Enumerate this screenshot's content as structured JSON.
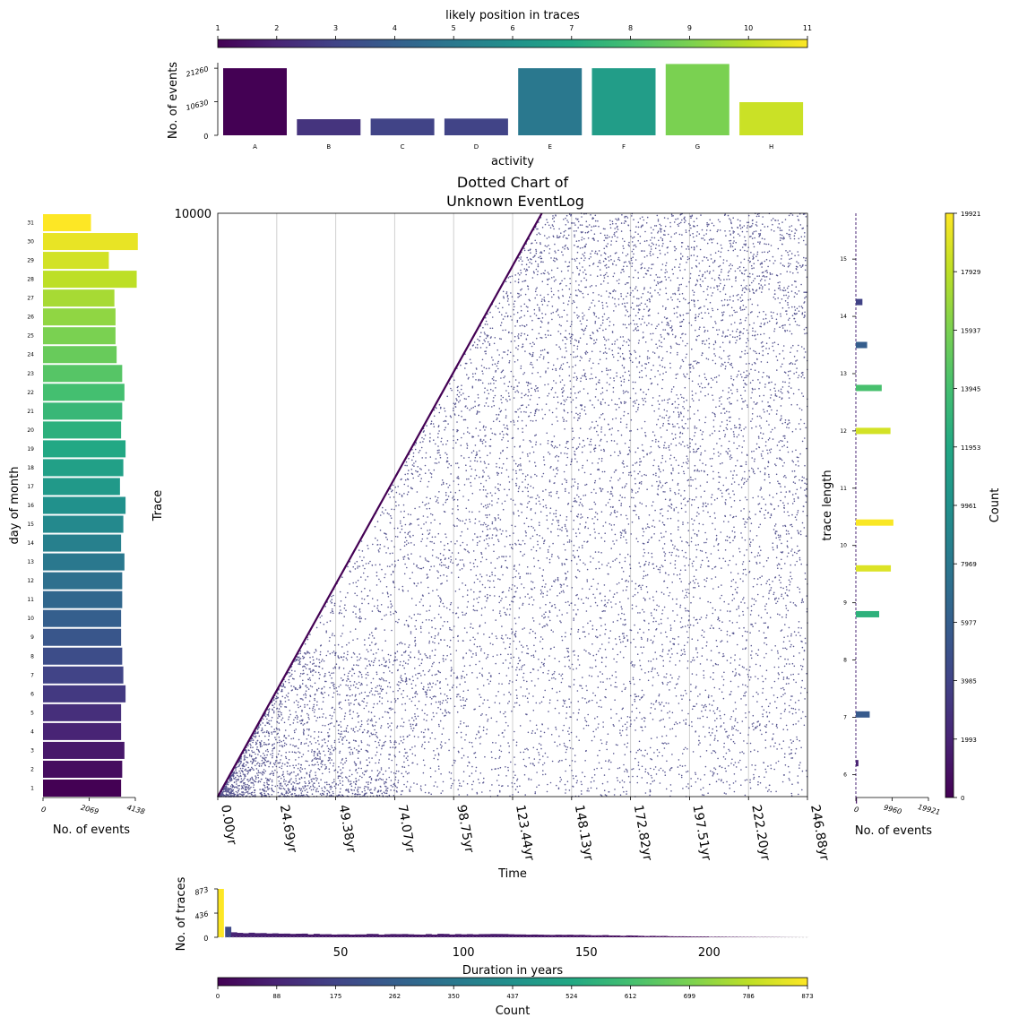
{
  "palette": [
    "#440154",
    "#482475",
    "#414487",
    "#355f8d",
    "#2a788e",
    "#21918c",
    "#22a884",
    "#44bf70",
    "#7ad151",
    "#bddf26",
    "#fde725"
  ],
  "figure": {
    "main_title": "Dotted Chart of",
    "main_subtitle": "Unknown EventLog"
  },
  "chart_data": [
    {
      "id": "activity_counts",
      "type": "bar",
      "xlabel": "activity",
      "ylabel": "No. of events",
      "categories": [
        "A",
        "B",
        "C",
        "D",
        "E",
        "F",
        "G",
        "H"
      ],
      "values": [
        21260,
        5100,
        5300,
        5300,
        21260,
        21260,
        22600,
        10500
      ],
      "color_index": [
        0.0,
        0.15,
        0.2,
        0.2,
        0.4,
        0.55,
        0.8,
        0.92
      ],
      "yticks": [
        "0",
        "10630",
        "21260"
      ],
      "ylim": [
        0,
        23000
      ],
      "colorbar": {
        "label": "likely position in traces",
        "ticks": [
          "1",
          "2",
          "3",
          "4",
          "5",
          "6",
          "7",
          "8",
          "9",
          "10",
          "11"
        ],
        "range": [
          1,
          11
        ]
      }
    },
    {
      "id": "dotted_chart",
      "type": "scatter",
      "xlabel": "Time",
      "ylabel": "Trace",
      "ylim": [
        0,
        10000
      ],
      "ytick": "10000",
      "xlim": [
        0,
        246.88
      ],
      "xticks": [
        "0.00yr",
        "24.69yr",
        "49.38yr",
        "74.07yr",
        "98.75yr",
        "123.44yr",
        "148.13yr",
        "172.82yr",
        "197.51yr",
        "222.20yr",
        "246.88yr"
      ],
      "xtick_values": [
        0,
        24.69,
        49.38,
        74.07,
        98.75,
        123.44,
        148.13,
        172.82,
        197.51,
        222.2,
        246.88
      ],
      "trace_start_rate_per_year": 1.38,
      "marker_color": "#3b3a7e",
      "grid": "vertical"
    },
    {
      "id": "day_of_month",
      "type": "bar",
      "orientation": "horizontal",
      "xlabel": "No. of events",
      "ylabel": "day of month",
      "categories": [
        "1",
        "2",
        "3",
        "4",
        "5",
        "6",
        "7",
        "8",
        "9",
        "10",
        "11",
        "12",
        "13",
        "14",
        "15",
        "16",
        "17",
        "18",
        "19",
        "20",
        "21",
        "22",
        "23",
        "24",
        "25",
        "26",
        "27",
        "28",
        "29",
        "30",
        "31"
      ],
      "values": [
        3500,
        3550,
        3650,
        3500,
        3500,
        3700,
        3600,
        3550,
        3500,
        3500,
        3550,
        3550,
        3650,
        3500,
        3600,
        3700,
        3450,
        3600,
        3700,
        3500,
        3550,
        3650,
        3550,
        3300,
        3250,
        3250,
        3200,
        4200,
        2950,
        4250,
        2150
      ],
      "xticks": [
        "0",
        "2069",
        "4138"
      ],
      "xlim": [
        0,
        4138
      ]
    },
    {
      "id": "trace_length",
      "type": "bar",
      "orientation": "horizontal",
      "xlabel": "No. of events",
      "ylabel": "trace length",
      "categories": [
        "5.5",
        "6.2",
        "7.0",
        "8.8",
        "9.6",
        "10.4",
        "12.0",
        "12.7",
        "13.5",
        "14.2"
      ],
      "positions": [
        5.55,
        6.2,
        7.05,
        8.8,
        9.6,
        10.4,
        12.0,
        12.75,
        13.5,
        14.25
      ],
      "values": [
        300,
        700,
        3800,
        6400,
        9600,
        10300,
        9500,
        7100,
        3100,
        1800
      ],
      "color_values": [
        1000,
        1800,
        5600,
        12700,
        18900,
        19800,
        18600,
        14100,
        5900,
        3900
      ],
      "yticks": [
        "6",
        "7",
        "8",
        "9",
        "10",
        "11",
        "12",
        "13",
        "14",
        "15"
      ],
      "ylim": [
        5.6,
        15.8
      ],
      "xticks": [
        "0",
        "9960",
        "19921"
      ],
      "xlim": [
        0,
        19921
      ],
      "colorbar": {
        "label": "Count",
        "ticks": [
          "0",
          "1993",
          "3985",
          "5977",
          "7969",
          "9961",
          "11953",
          "13945",
          "15937",
          "17929",
          "19921"
        ],
        "range": [
          0,
          19921
        ]
      }
    },
    {
      "id": "duration",
      "type": "bar",
      "xlabel": "Duration in years",
      "ylabel": "No. of traces",
      "yticks": [
        "0",
        "436",
        "873"
      ],
      "ylim": [
        0,
        873
      ],
      "xticks": [
        "50",
        "100",
        "150",
        "200"
      ],
      "xtick_values": [
        50,
        100,
        150,
        200
      ],
      "xlim": [
        0,
        240
      ],
      "first_bin": {
        "x": [
          0,
          2.5
        ],
        "value": 873
      },
      "histogram_profile": [
        [
          3,
          190
        ],
        [
          10,
          150
        ],
        [
          20,
          120
        ],
        [
          40,
          100
        ],
        [
          60,
          100
        ],
        [
          80,
          100
        ],
        [
          100,
          105
        ],
        [
          120,
          100
        ],
        [
          140,
          80
        ],
        [
          160,
          60
        ],
        [
          180,
          40
        ],
        [
          200,
          20
        ],
        [
          220,
          10
        ],
        [
          240,
          0
        ]
      ],
      "colorbar": {
        "label": "Count",
        "ticks": [
          "0",
          "88",
          "175",
          "262",
          "350",
          "437",
          "524",
          "612",
          "699",
          "786",
          "873"
        ],
        "range": [
          0,
          873
        ]
      }
    }
  ]
}
